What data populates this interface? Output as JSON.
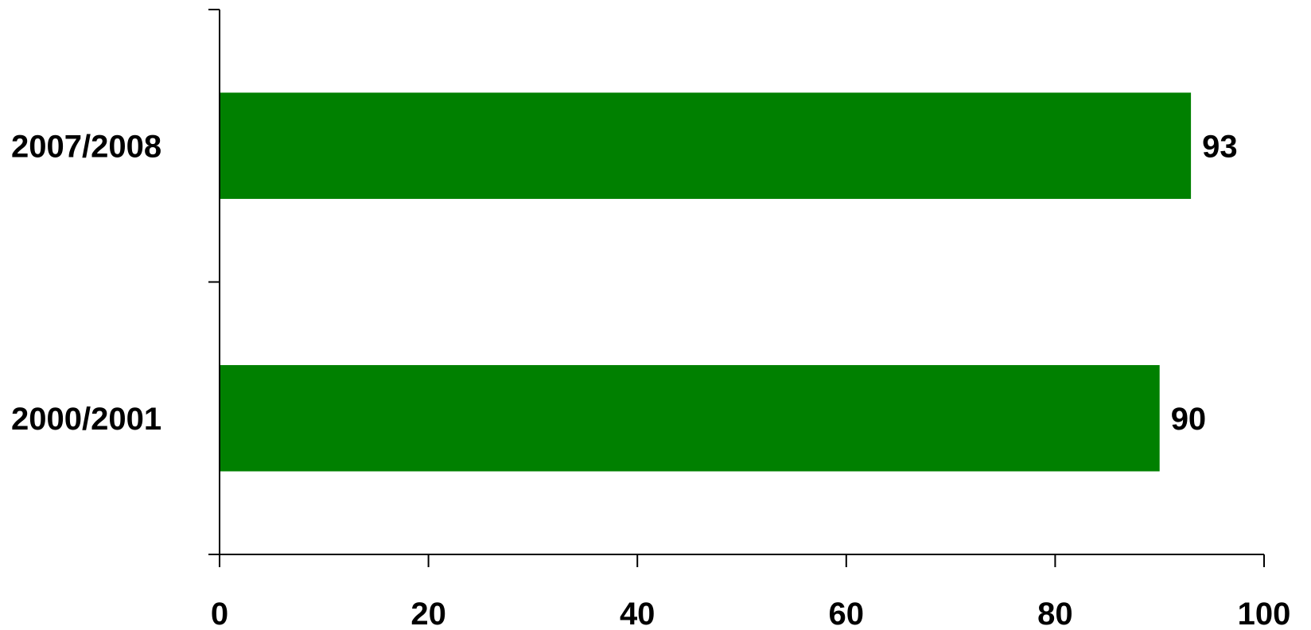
{
  "chart_data": {
    "type": "bar",
    "orientation": "horizontal",
    "categories": [
      "2007/2008",
      "2000/2001"
    ],
    "series": [
      {
        "values": [
          93,
          90
        ],
        "color": "#008000"
      }
    ],
    "data_labels": [
      "93",
      "90"
    ],
    "xlim": [
      0,
      100
    ],
    "x_ticks": [
      0,
      20,
      40,
      60,
      80,
      100
    ],
    "x_tick_labels": [
      "0",
      "20",
      "40",
      "60",
      "80",
      "100"
    ],
    "grid": false,
    "legend": "none"
  }
}
